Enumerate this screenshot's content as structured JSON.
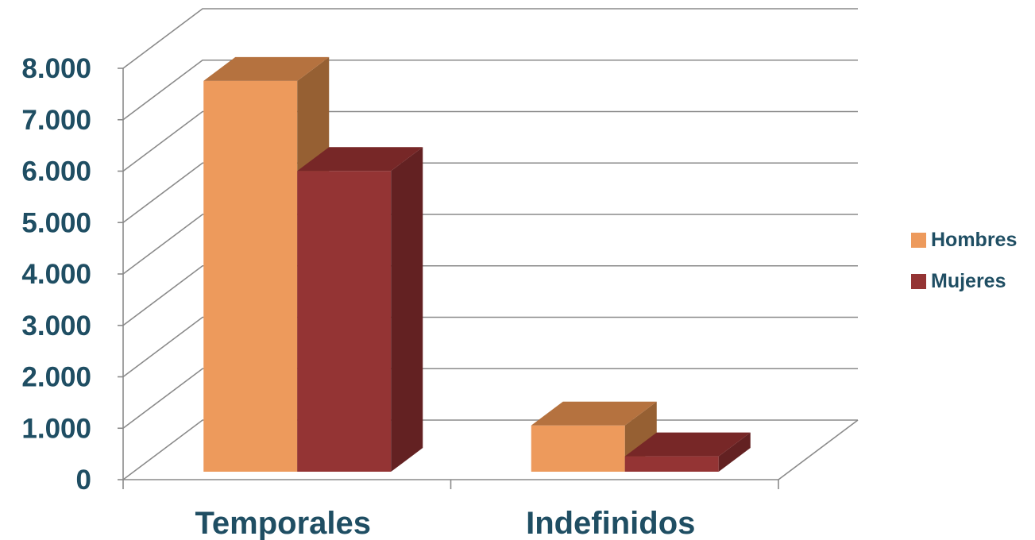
{
  "chart_data": {
    "type": "bar",
    "title": "",
    "xlabel": "",
    "ylabel": "",
    "categories": [
      "Temporales",
      "Indefinidos"
    ],
    "series": [
      {
        "name": "Hombres",
        "values": [
          7600,
          900
        ],
        "color": "#ed9a5c",
        "top_color": "#b5723f",
        "side_color": "#966033"
      },
      {
        "name": "Mujeres",
        "values": [
          5850,
          300
        ],
        "color": "#943434",
        "top_color": "#772727",
        "side_color": "#632122"
      }
    ],
    "ylim": [
      0,
      8000
    ],
    "y_ticks": [
      "0",
      "1.000",
      "2.000",
      "3.000",
      "4.000",
      "5.000",
      "6.000",
      "7.000",
      "8.000"
    ],
    "grid": true,
    "legend_position": "right",
    "style": "3d-clustered-column"
  }
}
